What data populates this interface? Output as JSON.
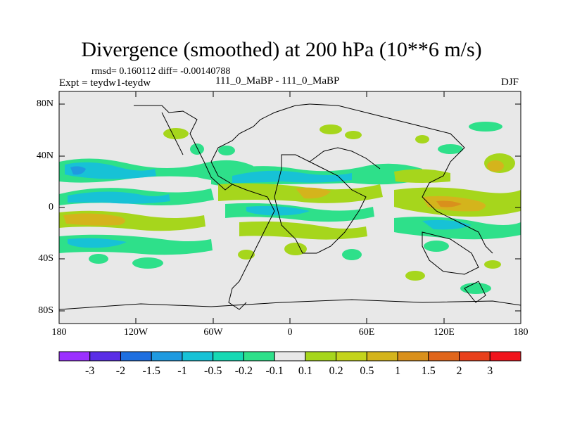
{
  "title": "Divergence (smoothed) at 200 hPa (10**6 m/s)",
  "stats": "rmsd= 0.160112  diff= -0.00140788",
  "expt": "Expt = teydw1-teydw",
  "case": "111_0_MaBP - 111_0_MaBP",
  "season": "DJF",
  "y_ticks": [
    "80N",
    "40N",
    "0",
    "40S",
    "80S"
  ],
  "x_ticks": [
    "180",
    "120W",
    "60W",
    "0",
    "60E",
    "120E",
    "180"
  ],
  "colorbar": {
    "colors": [
      "#9b30ff",
      "#5a2ee6",
      "#1f6fe0",
      "#1f9ae0",
      "#17c2d6",
      "#16d9b4",
      "#2ee08a",
      "#e8e8e8",
      "#a6d61c",
      "#c4d41c",
      "#d4b41c",
      "#d9901c",
      "#e0661c",
      "#e8401c",
      "#f0141c"
    ],
    "labels": [
      "-3",
      "-2",
      "-1.5",
      "-1",
      "-0.5",
      "-0.2",
      "-0.1",
      "0.1",
      "0.2",
      "0.5",
      "1",
      "1.5",
      "2",
      "3"
    ]
  }
}
